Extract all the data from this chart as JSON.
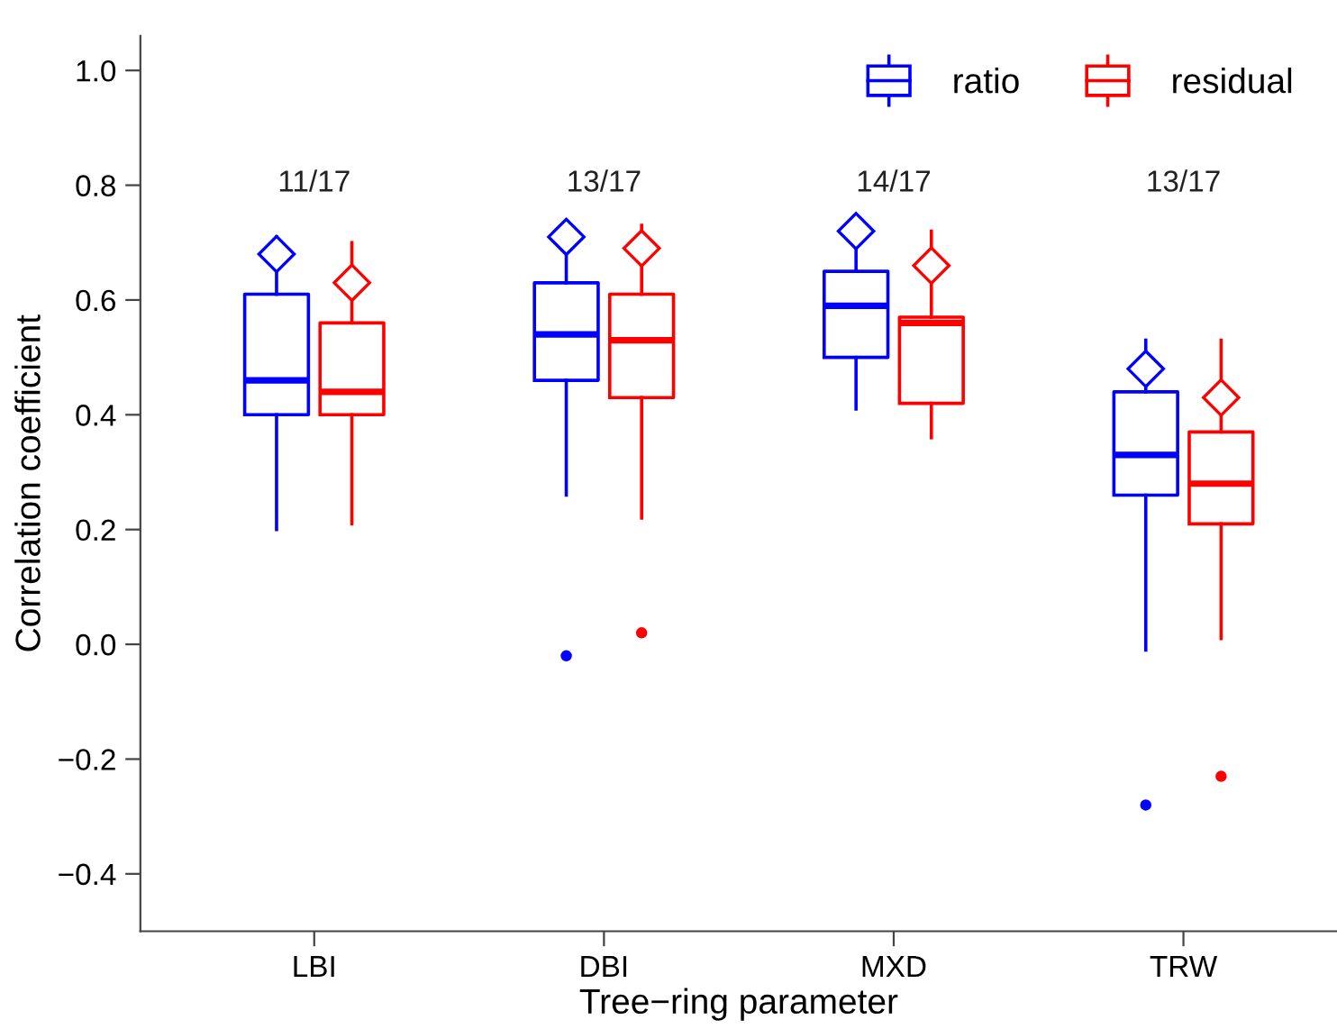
{
  "chart_data": {
    "type": "box",
    "xlabel": "Tree−ring parameter",
    "ylabel": "Correlation coefficient",
    "categories": [
      "LBI",
      "DBI",
      "MXD",
      "TRW"
    ],
    "series": [
      {
        "name": "ratio",
        "color": "#0000ff",
        "boxes": [
          {
            "low": 0.2,
            "q1": 0.4,
            "median": 0.46,
            "q3": 0.61,
            "high": 0.71,
            "mean": 0.68
          },
          {
            "low": 0.26,
            "q1": 0.46,
            "median": 0.54,
            "q3": 0.63,
            "high": 0.7,
            "mean": 0.71,
            "outliers": [
              -0.02
            ]
          },
          {
            "low": 0.41,
            "q1": 0.5,
            "median": 0.59,
            "q3": 0.65,
            "high": 0.7,
            "mean": 0.72
          },
          {
            "low": -0.01,
            "q1": 0.26,
            "median": 0.33,
            "q3": 0.44,
            "high": 0.53,
            "mean": 0.48,
            "outliers": [
              -0.28
            ]
          }
        ]
      },
      {
        "name": "residual",
        "color": "#ff0000",
        "boxes": [
          {
            "low": 0.21,
            "q1": 0.4,
            "median": 0.44,
            "q3": 0.56,
            "high": 0.7,
            "mean": 0.63
          },
          {
            "low": 0.22,
            "q1": 0.43,
            "median": 0.53,
            "q3": 0.61,
            "high": 0.73,
            "mean": 0.69,
            "outliers": [
              0.02
            ]
          },
          {
            "low": 0.36,
            "q1": 0.42,
            "median": 0.56,
            "q3": 0.57,
            "high": 0.72,
            "mean": 0.66
          },
          {
            "low": 0.01,
            "q1": 0.21,
            "median": 0.28,
            "q3": 0.37,
            "high": 0.53,
            "mean": 0.43,
            "outliers": [
              -0.23
            ]
          }
        ]
      }
    ],
    "annotations": [
      "11/17",
      "13/17",
      "14/17",
      "13/17"
    ],
    "ylim": [
      -0.5,
      1.06
    ],
    "yticks": [
      {
        "value": -0.4,
        "label": "−0.4"
      },
      {
        "value": -0.2,
        "label": "−0.2"
      },
      {
        "value": 0.0,
        "label": "0.0"
      },
      0.2,
      0.4,
      0.6,
      0.8,
      {
        "value": 1.0,
        "label": "1.0"
      }
    ],
    "grid": false,
    "legend": "top right",
    "marker": "diamond"
  }
}
